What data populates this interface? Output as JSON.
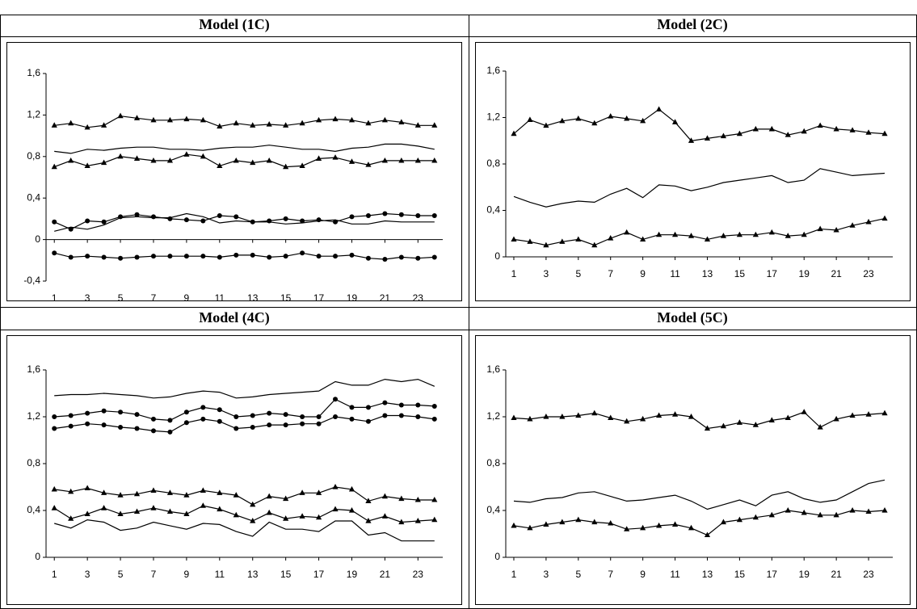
{
  "chart_data": [
    {
      "type": "line",
      "title": "Model (1C)",
      "x": [
        1,
        2,
        3,
        4,
        5,
        6,
        7,
        8,
        9,
        10,
        11,
        12,
        13,
        14,
        15,
        16,
        17,
        18,
        19,
        20,
        21,
        22,
        23,
        24
      ],
      "xlim": [
        0.5,
        24.5
      ],
      "xticks": [
        1,
        3,
        5,
        7,
        9,
        11,
        13,
        15,
        17,
        19,
        21,
        23
      ],
      "ylim": [
        -0.4,
        1.6
      ],
      "yticks": [
        {
          "value": -0.4,
          "label": "-0,4"
        },
        0,
        {
          "value": 0.4,
          "label": "0,4"
        },
        {
          "value": 0.8,
          "label": "0,8"
        },
        {
          "value": 1.2,
          "label": "1,2"
        },
        {
          "value": 1.6,
          "label": "1,6"
        }
      ],
      "series": [
        {
          "marker": "triangle",
          "color": "#000000",
          "values": [
            1.1,
            1.12,
            1.08,
            1.1,
            1.19,
            1.17,
            1.15,
            1.15,
            1.16,
            1.15,
            1.09,
            1.12,
            1.1,
            1.11,
            1.1,
            1.12,
            1.15,
            1.16,
            1.15,
            1.12,
            1.15,
            1.13,
            1.1,
            1.1
          ]
        },
        {
          "marker": "none",
          "color": "#000000",
          "values": [
            0.85,
            0.83,
            0.87,
            0.86,
            0.88,
            0.89,
            0.89,
            0.87,
            0.87,
            0.86,
            0.88,
            0.89,
            0.89,
            0.91,
            0.89,
            0.87,
            0.87,
            0.85,
            0.88,
            0.89,
            0.92,
            0.92,
            0.9,
            0.87
          ]
        },
        {
          "marker": "triangle",
          "color": "#000000",
          "values": [
            0.7,
            0.76,
            0.71,
            0.74,
            0.8,
            0.78,
            0.76,
            0.76,
            0.82,
            0.8,
            0.71,
            0.76,
            0.74,
            0.76,
            0.7,
            0.71,
            0.78,
            0.79,
            0.75,
            0.72,
            0.76,
            0.76,
            0.76,
            0.76
          ]
        },
        {
          "marker": "circle",
          "color": "#000000",
          "values": [
            0.17,
            0.1,
            0.18,
            0.17,
            0.22,
            0.24,
            0.22,
            0.2,
            0.19,
            0.18,
            0.23,
            0.22,
            0.17,
            0.18,
            0.2,
            0.18,
            0.19,
            0.17,
            0.22,
            0.23,
            0.25,
            0.24,
            0.23,
            0.23
          ]
        },
        {
          "marker": "none",
          "color": "#000000",
          "values": [
            0.08,
            0.12,
            0.1,
            0.14,
            0.21,
            0.22,
            0.21,
            0.21,
            0.25,
            0.22,
            0.16,
            0.18,
            0.17,
            0.17,
            0.15,
            0.16,
            0.18,
            0.19,
            0.15,
            0.15,
            0.18,
            0.17,
            0.17,
            0.17
          ]
        },
        {
          "marker": "circle",
          "color": "#000000",
          "values": [
            -0.13,
            -0.17,
            -0.16,
            -0.17,
            -0.18,
            -0.17,
            -0.16,
            -0.16,
            -0.16,
            -0.16,
            -0.17,
            -0.15,
            -0.15,
            -0.17,
            -0.16,
            -0.13,
            -0.16,
            -0.16,
            -0.15,
            -0.18,
            -0.19,
            -0.17,
            -0.18,
            -0.17
          ]
        }
      ]
    },
    {
      "type": "line",
      "title": "Model (2C)",
      "x": [
        1,
        2,
        3,
        4,
        5,
        6,
        7,
        8,
        9,
        10,
        11,
        12,
        13,
        14,
        15,
        16,
        17,
        18,
        19,
        20,
        21,
        22,
        23,
        24
      ],
      "xlim": [
        0.5,
        24.5
      ],
      "xticks": [
        1,
        3,
        5,
        7,
        9,
        11,
        13,
        15,
        17,
        19,
        21,
        23
      ],
      "ylim": [
        0,
        1.6
      ],
      "yticks": [
        0,
        {
          "value": 0.4,
          "label": "0,4"
        },
        {
          "value": 0.8,
          "label": "0,8"
        },
        {
          "value": 1.2,
          "label": "1,2"
        },
        {
          "value": 1.6,
          "label": "1,6"
        }
      ],
      "series": [
        {
          "marker": "triangle",
          "color": "#000000",
          "values": [
            1.06,
            1.18,
            1.13,
            1.17,
            1.19,
            1.15,
            1.21,
            1.19,
            1.17,
            1.27,
            1.16,
            1.0,
            1.02,
            1.04,
            1.06,
            1.1,
            1.1,
            1.05,
            1.08,
            1.13,
            1.1,
            1.09,
            1.07,
            1.06
          ]
        },
        {
          "marker": "none",
          "color": "#000000",
          "values": [
            0.52,
            0.47,
            0.43,
            0.46,
            0.48,
            0.47,
            0.54,
            0.59,
            0.51,
            0.62,
            0.61,
            0.57,
            0.6,
            0.64,
            0.66,
            0.68,
            0.7,
            0.64,
            0.66,
            0.76,
            0.73,
            0.7,
            0.71,
            0.72
          ]
        },
        {
          "marker": "triangle",
          "color": "#000000",
          "values": [
            0.15,
            0.13,
            0.1,
            0.13,
            0.15,
            0.1,
            0.16,
            0.21,
            0.15,
            0.19,
            0.19,
            0.18,
            0.15,
            0.18,
            0.19,
            0.19,
            0.21,
            0.18,
            0.19,
            0.24,
            0.23,
            0.27,
            0.3,
            0.33
          ]
        }
      ]
    },
    {
      "type": "line",
      "title": "Model (4C)",
      "x": [
        1,
        2,
        3,
        4,
        5,
        6,
        7,
        8,
        9,
        10,
        11,
        12,
        13,
        14,
        15,
        16,
        17,
        18,
        19,
        20,
        21,
        22,
        23,
        24
      ],
      "xlim": [
        0.5,
        24.5
      ],
      "xticks": [
        1,
        3,
        5,
        7,
        9,
        11,
        13,
        15,
        17,
        19,
        21,
        23
      ],
      "ylim": [
        0,
        1.6
      ],
      "yticks": [
        0,
        {
          "value": 0.4,
          "label": "0,4"
        },
        {
          "value": 0.8,
          "label": "0,8"
        },
        {
          "value": 1.2,
          "label": "1,2"
        },
        {
          "value": 1.6,
          "label": "1,6"
        }
      ],
      "series": [
        {
          "marker": "none",
          "color": "#000000",
          "values": [
            1.38,
            1.39,
            1.39,
            1.4,
            1.39,
            1.38,
            1.36,
            1.37,
            1.4,
            1.42,
            1.41,
            1.36,
            1.37,
            1.39,
            1.4,
            1.41,
            1.42,
            1.5,
            1.47,
            1.47,
            1.52,
            1.5,
            1.52,
            1.46
          ]
        },
        {
          "marker": "circle",
          "color": "#000000",
          "values": [
            1.2,
            1.21,
            1.23,
            1.25,
            1.24,
            1.22,
            1.18,
            1.17,
            1.24,
            1.28,
            1.26,
            1.2,
            1.21,
            1.23,
            1.22,
            1.2,
            1.2,
            1.35,
            1.28,
            1.28,
            1.32,
            1.3,
            1.3,
            1.29
          ]
        },
        {
          "marker": "circle",
          "color": "#000000",
          "values": [
            1.1,
            1.12,
            1.14,
            1.13,
            1.11,
            1.1,
            1.08,
            1.07,
            1.15,
            1.18,
            1.16,
            1.1,
            1.11,
            1.13,
            1.13,
            1.14,
            1.14,
            1.2,
            1.18,
            1.16,
            1.21,
            1.21,
            1.2,
            1.18
          ]
        },
        {
          "marker": "triangle",
          "color": "#000000",
          "values": [
            0.58,
            0.56,
            0.59,
            0.55,
            0.53,
            0.54,
            0.57,
            0.55,
            0.53,
            0.57,
            0.55,
            0.53,
            0.45,
            0.52,
            0.5,
            0.55,
            0.55,
            0.6,
            0.58,
            0.48,
            0.52,
            0.5,
            0.49,
            0.49
          ]
        },
        {
          "marker": "triangle",
          "color": "#000000",
          "values": [
            0.42,
            0.33,
            0.37,
            0.42,
            0.37,
            0.39,
            0.42,
            0.39,
            0.37,
            0.44,
            0.41,
            0.36,
            0.31,
            0.38,
            0.33,
            0.35,
            0.34,
            0.41,
            0.4,
            0.31,
            0.35,
            0.3,
            0.31,
            0.32
          ]
        },
        {
          "marker": "none",
          "color": "#000000",
          "values": [
            0.29,
            0.25,
            0.32,
            0.3,
            0.23,
            0.25,
            0.3,
            0.27,
            0.24,
            0.29,
            0.28,
            0.22,
            0.18,
            0.3,
            0.24,
            0.24,
            0.22,
            0.31,
            0.31,
            0.19,
            0.21,
            0.14,
            0.14,
            0.14
          ]
        }
      ]
    },
    {
      "type": "line",
      "title": "Model (5C)",
      "x": [
        1,
        2,
        3,
        4,
        5,
        6,
        7,
        8,
        9,
        10,
        11,
        12,
        13,
        14,
        15,
        16,
        17,
        18,
        19,
        20,
        21,
        22,
        23,
        24
      ],
      "xlim": [
        0.5,
        24.5
      ],
      "xticks": [
        1,
        3,
        5,
        7,
        9,
        11,
        13,
        15,
        17,
        19,
        21,
        23
      ],
      "ylim": [
        0,
        1.6
      ],
      "yticks": [
        0,
        {
          "value": 0.4,
          "label": "0,4"
        },
        {
          "value": 0.8,
          "label": "0,8"
        },
        {
          "value": 1.2,
          "label": "1,2"
        },
        {
          "value": 1.6,
          "label": "1,6"
        }
      ],
      "series": [
        {
          "marker": "triangle",
          "color": "#000000",
          "values": [
            1.19,
            1.18,
            1.2,
            1.2,
            1.21,
            1.23,
            1.19,
            1.16,
            1.18,
            1.21,
            1.22,
            1.2,
            1.1,
            1.12,
            1.15,
            1.13,
            1.17,
            1.19,
            1.24,
            1.11,
            1.18,
            1.21,
            1.22,
            1.23
          ]
        },
        {
          "marker": "none",
          "color": "#000000",
          "values": [
            0.48,
            0.47,
            0.5,
            0.51,
            0.55,
            0.56,
            0.52,
            0.48,
            0.49,
            0.51,
            0.53,
            0.48,
            0.41,
            0.45,
            0.49,
            0.44,
            0.53,
            0.56,
            0.5,
            0.47,
            0.49,
            0.56,
            0.63,
            0.66
          ]
        },
        {
          "marker": "triangle",
          "color": "#000000",
          "values": [
            0.27,
            0.25,
            0.28,
            0.3,
            0.32,
            0.3,
            0.29,
            0.24,
            0.25,
            0.27,
            0.28,
            0.25,
            0.19,
            0.3,
            0.32,
            0.34,
            0.36,
            0.4,
            0.38,
            0.36,
            0.36,
            0.4,
            0.39,
            0.4
          ]
        }
      ]
    }
  ]
}
